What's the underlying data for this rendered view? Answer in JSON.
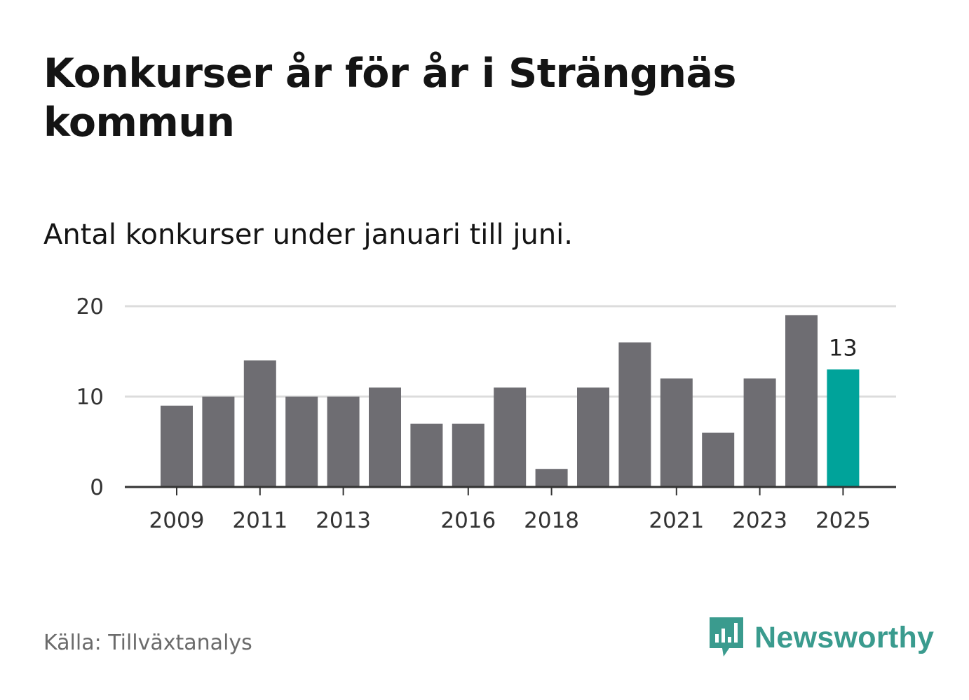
{
  "title": "Konkurser år för år i Strängnäs kommun",
  "subtitle": "Antal konkurser under januari till juni.",
  "source": "Källa: Tillväxtanalys",
  "brand": {
    "name": "Newsworthy",
    "icon": "newsworthy-logo-icon",
    "color": "#3a9b8e"
  },
  "colors": {
    "bar": "#6e6d72",
    "highlight": "#00a39a",
    "grid": "#dcdcdc",
    "axis": "#333333"
  },
  "chart_data": {
    "type": "bar",
    "categories": [
      "2009",
      "2010",
      "2011",
      "2012",
      "2013",
      "2014",
      "2015",
      "2016",
      "2017",
      "2018",
      "2019",
      "2020",
      "2021",
      "2022",
      "2023",
      "2024",
      "2025"
    ],
    "values": [
      9,
      10,
      14,
      10,
      10,
      11,
      7,
      7,
      11,
      2,
      11,
      16,
      12,
      6,
      12,
      19,
      13
    ],
    "x_tick_labels": [
      "2009",
      "2011",
      "2013",
      "2016",
      "2018",
      "2021",
      "2023",
      "2025"
    ],
    "y_ticks": [
      0,
      10,
      20
    ],
    "ylim": [
      0,
      20
    ],
    "highlight": {
      "category": "2025",
      "label": "13"
    },
    "grid": true
  }
}
